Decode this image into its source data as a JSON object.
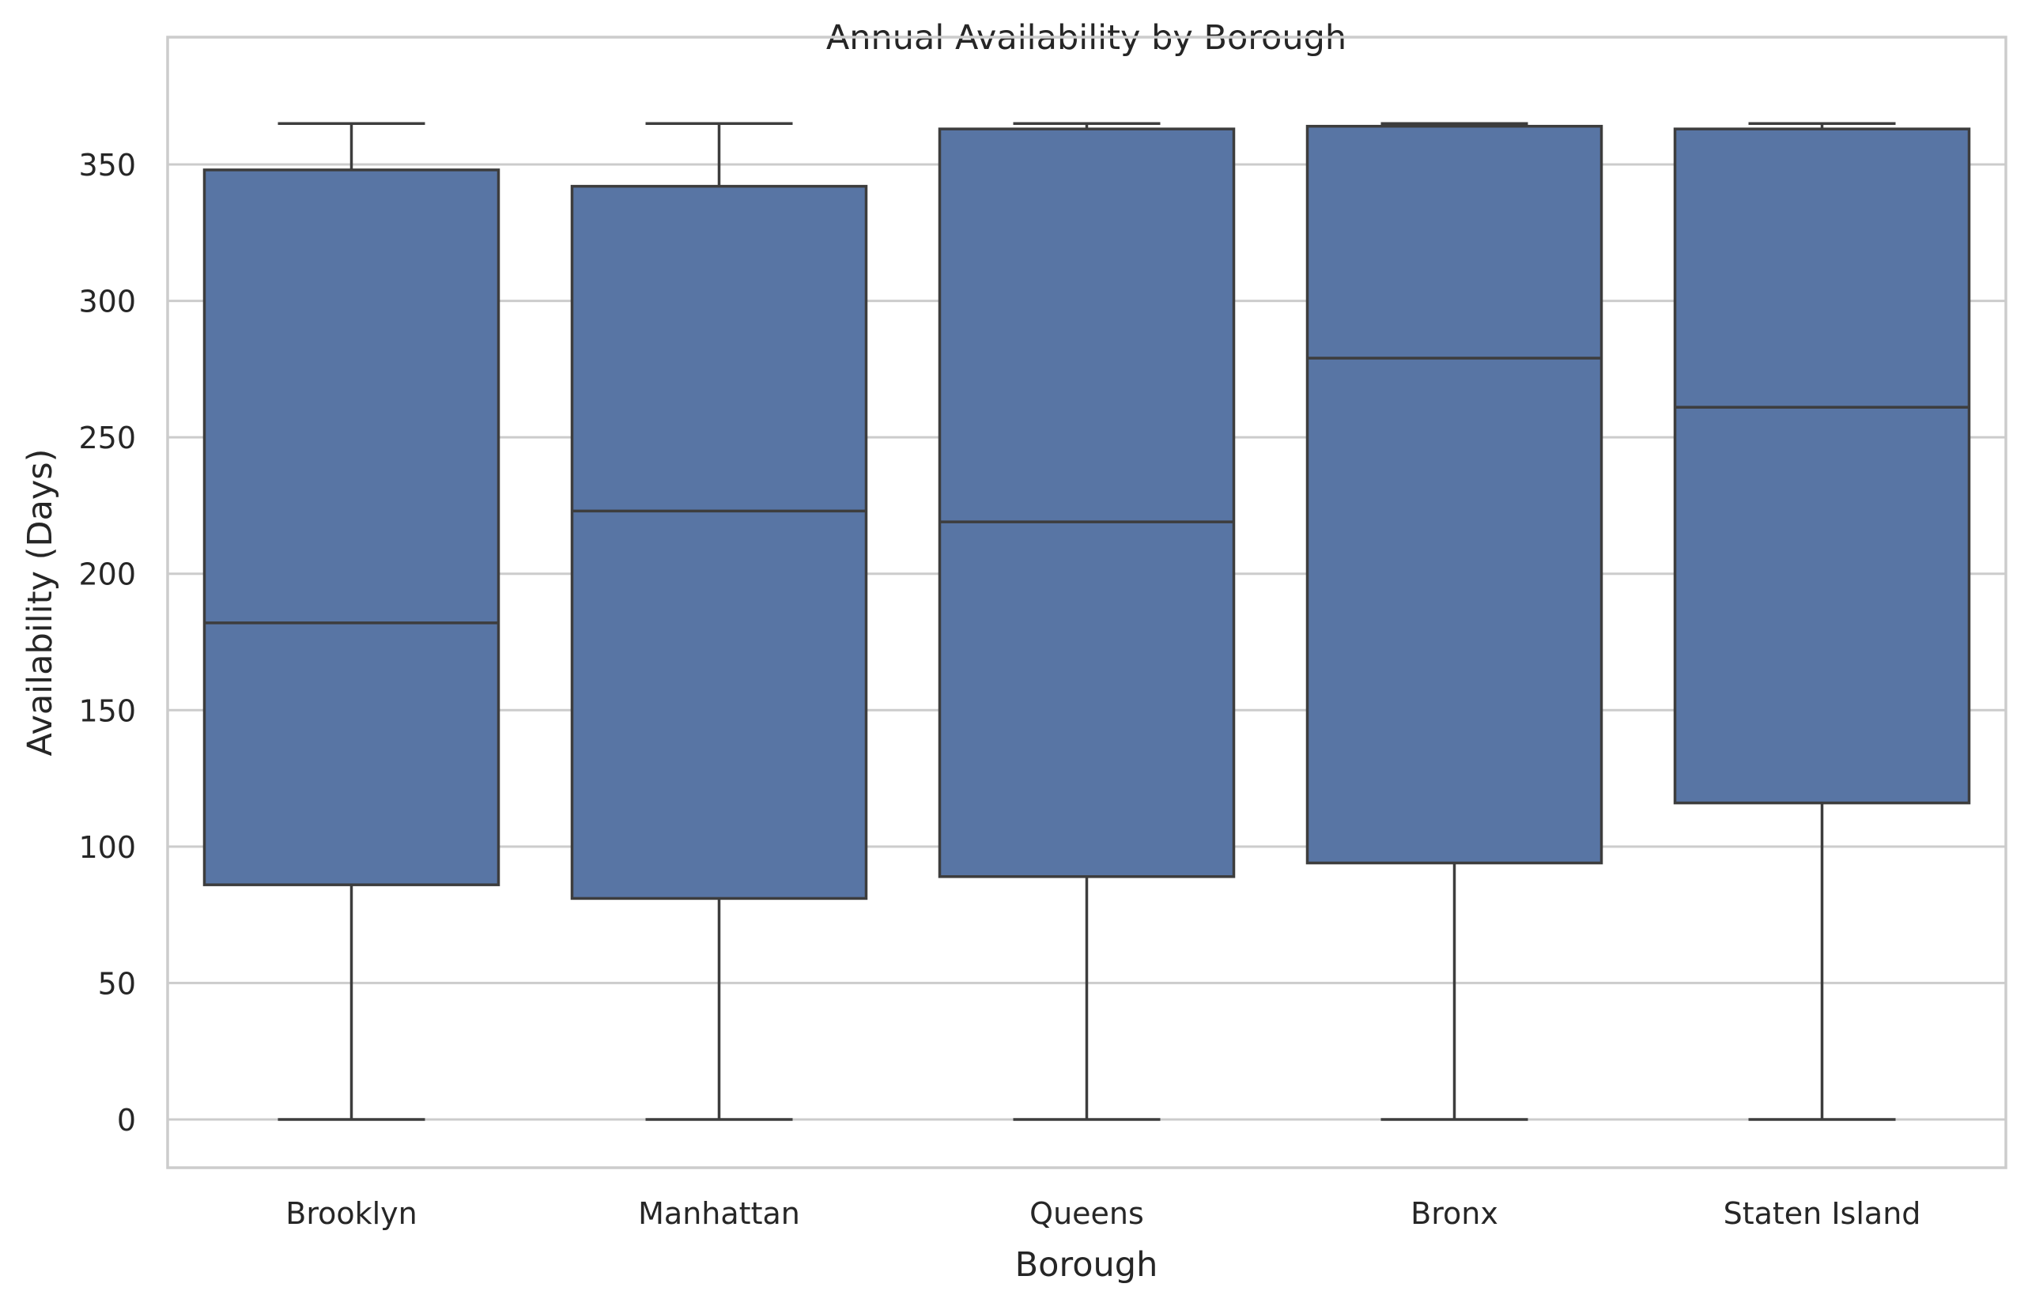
{
  "chart_data": {
    "type": "box",
    "title": "Annual Availability by Borough",
    "xlabel": "Borough",
    "ylabel": "Availability (Days)",
    "ylim": [
      -18,
      380
    ],
    "yticks": [
      0,
      50,
      100,
      150,
      200,
      250,
      300,
      350
    ],
    "grid": "horizontal",
    "categories": [
      "Brooklyn",
      "Manhattan",
      "Queens",
      "Bronx",
      "Staten Island"
    ],
    "boxes": [
      {
        "category": "Brooklyn",
        "whisker_low": 0,
        "q1": 86,
        "median": 182,
        "q3": 348,
        "whisker_high": 365
      },
      {
        "category": "Manhattan",
        "whisker_low": 0,
        "q1": 81,
        "median": 223,
        "q3": 342,
        "whisker_high": 365
      },
      {
        "category": "Queens",
        "whisker_low": 0,
        "q1": 89,
        "median": 219,
        "q3": 363,
        "whisker_high": 365
      },
      {
        "category": "Bronx",
        "whisker_low": 0,
        "q1": 94,
        "median": 279,
        "q3": 364,
        "whisker_high": 365
      },
      {
        "category": "Staten Island",
        "whisker_low": 0,
        "q1": 116,
        "median": 261,
        "q3": 363,
        "whisker_high": 365
      }
    ],
    "colors": {
      "box_fill": "#5875a4",
      "box_edge": "#3d3d3d",
      "grid": "#cccccc",
      "spine": "#cccccc",
      "text": "#262626"
    }
  }
}
